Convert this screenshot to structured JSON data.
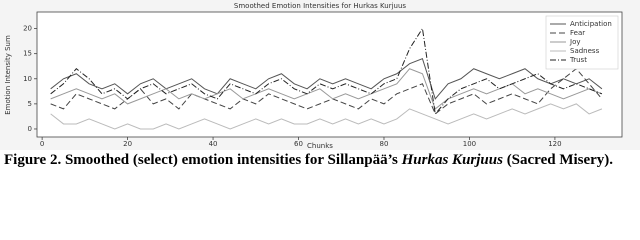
{
  "chart_data": {
    "type": "line",
    "title": "Smoothed Emotion Intensities for Hurkas Kurjuus",
    "x_label": "Chunks",
    "y_label": "Emotion Intensity Sum",
    "x": [
      2,
      5,
      8,
      11,
      14,
      17,
      20,
      23,
      26,
      29,
      32,
      35,
      38,
      41,
      44,
      47,
      50,
      53,
      56,
      59,
      62,
      65,
      68,
      71,
      74,
      77,
      80,
      83,
      86,
      89,
      92,
      95,
      98,
      101,
      104,
      107,
      110,
      113,
      116,
      119,
      122,
      125,
      128,
      131
    ],
    "series": [
      {
        "name": "Anticipation",
        "color": "#555555",
        "dash": "none",
        "values": [
          8,
          10,
          11,
          9,
          8,
          9,
          7,
          9,
          10,
          8,
          9,
          10,
          8,
          7,
          10,
          9,
          8,
          10,
          11,
          9,
          8,
          10,
          9,
          10,
          9,
          8,
          10,
          11,
          13,
          14,
          6,
          9,
          10,
          12,
          11,
          10,
          11,
          12,
          10,
          9,
          10,
          9,
          10,
          8
        ]
      },
      {
        "name": "Fear",
        "color": "#444444",
        "dash": "6,3",
        "values": [
          5,
          4,
          7,
          6,
          5,
          4,
          6,
          8,
          5,
          6,
          4,
          7,
          6,
          5,
          4,
          6,
          5,
          7,
          6,
          5,
          4,
          5,
          6,
          5,
          4,
          6,
          5,
          7,
          8,
          9,
          3,
          5,
          6,
          7,
          5,
          6,
          7,
          6,
          5,
          8,
          10,
          12,
          9,
          6
        ]
      },
      {
        "name": "Joy",
        "color": "#999999",
        "dash": "none",
        "values": [
          6,
          7,
          8,
          7,
          6,
          7,
          5,
          6,
          7,
          8,
          6,
          7,
          6,
          7,
          8,
          6,
          7,
          8,
          7,
          6,
          7,
          8,
          6,
          7,
          6,
          7,
          8,
          9,
          12,
          11,
          4,
          6,
          7,
          8,
          7,
          8,
          9,
          7,
          8,
          7,
          6,
          7,
          8,
          7
        ]
      },
      {
        "name": "Sadness",
        "color": "#bbbbbb",
        "dash": "none",
        "values": [
          3,
          1,
          1,
          2,
          1,
          0,
          1,
          0,
          0,
          1,
          0,
          1,
          2,
          1,
          0,
          1,
          2,
          1,
          2,
          1,
          1,
          2,
          1,
          2,
          1,
          2,
          1,
          2,
          4,
          3,
          2,
          1,
          2,
          3,
          2,
          3,
          4,
          3,
          4,
          5,
          4,
          5,
          3,
          4
        ]
      },
      {
        "name": "Trust",
        "color": "#222222",
        "dash": "6,2,1,2",
        "values": [
          7,
          9,
          12,
          10,
          7,
          8,
          6,
          8,
          9,
          7,
          8,
          9,
          7,
          6,
          9,
          8,
          7,
          9,
          10,
          8,
          7,
          9,
          8,
          9,
          8,
          7,
          9,
          10,
          16,
          20,
          3,
          6,
          8,
          9,
          10,
          8,
          9,
          10,
          11,
          9,
          8,
          9,
          8,
          7
        ]
      }
    ],
    "xlim": [
      -1.2,
      135.7
    ],
    "ylim": [
      -1.6,
      23.3
    ],
    "xticks": [
      0,
      20,
      40,
      60,
      80,
      100,
      120
    ],
    "yticks": [
      0,
      5,
      10,
      15,
      20
    ],
    "grid": false,
    "legend": "upper right"
  },
  "caption": [
    "Figure 2. Smoothed (select) emotion intensities for Sillanpää’s ",
    "Hurkas Kurjuus",
    " (Sacred Misery)."
  ]
}
